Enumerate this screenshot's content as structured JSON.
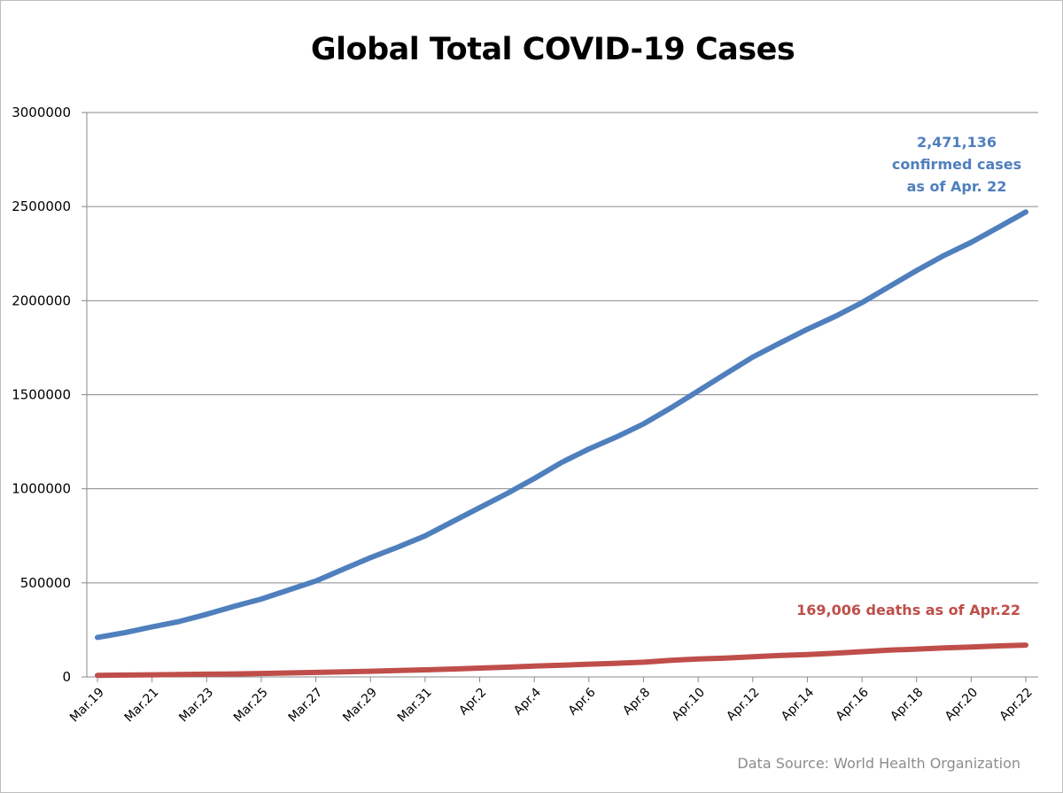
{
  "chart_data": {
    "type": "line",
    "title": "Global Total COVID-19 Cases",
    "xlabel": "",
    "ylabel": "",
    "ylim": [
      0,
      3000000
    ],
    "yticks": [
      "0",
      "500000",
      "1000000",
      "1500000",
      "2000000",
      "2500000",
      "3000000"
    ],
    "xtick_labels": [
      "Mar.19",
      "Mar.21",
      "Mar.23",
      "Mar.25",
      "Mar.27",
      "Mar.29",
      "Mar.31",
      "Apr.2",
      "Apr.4",
      "Apr.6",
      "Apr.8",
      "Apr.10",
      "Apr.12",
      "Apr.14",
      "Apr.16",
      "Apr.18",
      "Apr.20",
      "Apr.22"
    ],
    "x": [
      "Mar.19",
      "Mar.20",
      "Mar.21",
      "Mar.22",
      "Mar.23",
      "Mar.24",
      "Mar.25",
      "Mar.26",
      "Mar.27",
      "Mar.28",
      "Mar.29",
      "Mar.30",
      "Mar.31",
      "Apr.1",
      "Apr.2",
      "Apr.3",
      "Apr.4",
      "Apr.5",
      "Apr.6",
      "Apr.7",
      "Apr.8",
      "Apr.9",
      "Apr.10",
      "Apr.11",
      "Apr.12",
      "Apr.13",
      "Apr.14",
      "Apr.15",
      "Apr.16",
      "Apr.17",
      "Apr.18",
      "Apr.19",
      "Apr.20",
      "Apr.21",
      "Apr.22"
    ],
    "grid": true,
    "series": [
      {
        "color": "#4f7fbd",
        "values": [
          210000,
          235000,
          266000,
          295000,
          333000,
          375000,
          414000,
          462000,
          510000,
          572000,
          634000,
          690000,
          750000,
          825000,
          900000,
          975000,
          1055000,
          1140000,
          1212000,
          1275000,
          1345000,
          1430000,
          1520000,
          1610000,
          1700000,
          1775000,
          1848000,
          1915000,
          1990000,
          2075000,
          2160000,
          2240000,
          2310000,
          2390000,
          2471136
        ]
      },
      {
        "color": "#bf4e4a",
        "values": [
          8700,
          10000,
          11200,
          12900,
          14600,
          16200,
          18400,
          21000,
          24000,
          27200,
          30000,
          34000,
          37700,
          42000,
          47200,
          52000,
          58000,
          62400,
          67600,
          72600,
          78200,
          88500,
          95000,
          100000,
          107000,
          114000,
          119000,
          126000,
          134000,
          142000,
          148000,
          154000,
          159000,
          165000,
          169006
        ]
      }
    ],
    "annotations": {
      "confirmed_lines": [
        "2,471,136",
        "confirmed cases",
        "as of Apr. 22"
      ],
      "deaths": "169,006 deaths as of Apr.22"
    },
    "source": "Data Source: World Health Organization"
  }
}
